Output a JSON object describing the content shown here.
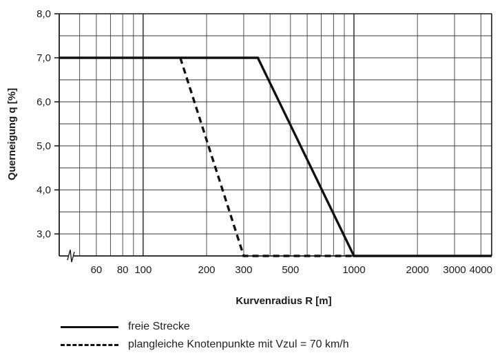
{
  "chart_data": {
    "type": "line",
    "x_scale": "log",
    "xlabel": "Kurvenradius R  [m]",
    "ylabel": "Querneigung q  [%]",
    "xlim": [
      40,
      4500
    ],
    "ylim": [
      2.5,
      8.0
    ],
    "x_ticks": [
      60,
      80,
      100,
      200,
      300,
      500,
      1000,
      2000,
      3000,
      4000
    ],
    "y_ticks": [
      {
        "value": 3.0,
        "label": "3,0"
      },
      {
        "value": 4.0,
        "label": "4,0"
      },
      {
        "value": 5.0,
        "label": "5,0"
      },
      {
        "value": 6.0,
        "label": "6,0"
      },
      {
        "value": 7.0,
        "label": "7,0"
      },
      {
        "value": 8.0,
        "label": "8,0"
      }
    ],
    "axis_break_marker": true,
    "grid": true,
    "series": [
      {
        "name": "freie Strecke",
        "style": "solid",
        "color": "#111111",
        "points": [
          [
            40,
            7.0
          ],
          [
            350,
            7.0
          ],
          [
            1000,
            2.5
          ],
          [
            4500,
            2.5
          ]
        ]
      },
      {
        "name": "plangleiche Knotenpunkte mit Vzul = 70 km/h",
        "style": "dashed",
        "color": "#111111",
        "points": [
          [
            150,
            7.0
          ],
          [
            300,
            2.5
          ],
          [
            1000,
            2.5
          ]
        ]
      }
    ],
    "legend_position": "bottom-left"
  }
}
